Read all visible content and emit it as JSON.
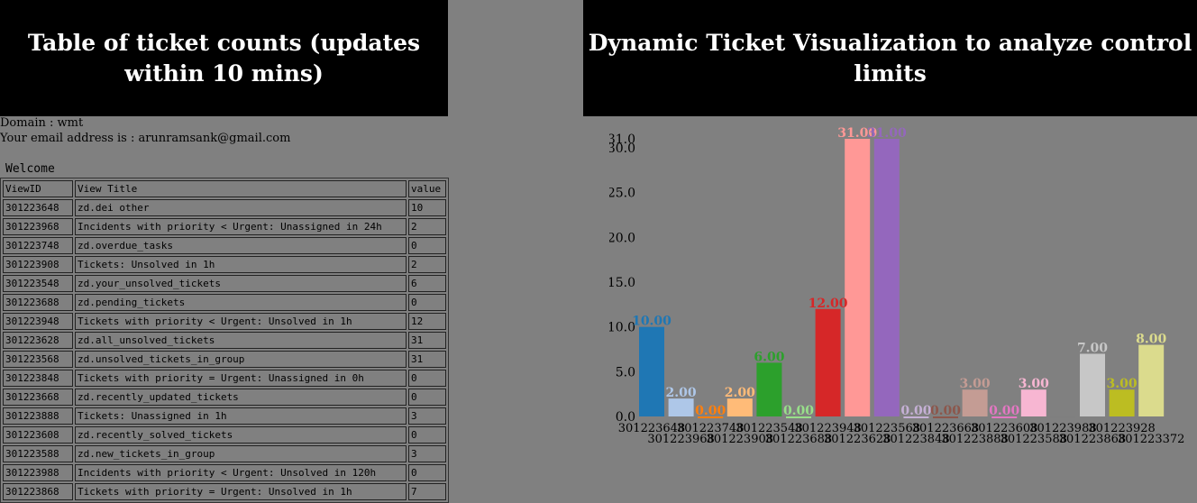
{
  "left_panel": {
    "title": "Table of ticket counts (updates within 10 mins)",
    "domain_line": "Domain : wmt",
    "email_line": "Your email address is : arunramsank@gmail.com",
    "welcome": "Welcome",
    "table": {
      "headers": [
        "ViewID",
        "View Title",
        "value"
      ],
      "rows": [
        [
          "301223648",
          "zd.dei other",
          "10"
        ],
        [
          "301223968",
          "Incidents with priority < Urgent: Unassigned in 24h",
          "2"
        ],
        [
          "301223748",
          "zd.overdue_tasks",
          "0"
        ],
        [
          "301223908",
          "Tickets: Unsolved in 1h",
          "2"
        ],
        [
          "301223548",
          "zd.your_unsolved_tickets",
          "6"
        ],
        [
          "301223688",
          "zd.pending_tickets",
          "0"
        ],
        [
          "301223948",
          "Tickets with priority < Urgent: Unsolved in 1h",
          "12"
        ],
        [
          "301223628",
          "zd.all_unsolved_tickets",
          "31"
        ],
        [
          "301223568",
          "zd.unsolved_tickets_in_group",
          "31"
        ],
        [
          "301223848",
          "Tickets with priority = Urgent: Unassigned in 0h",
          "0"
        ],
        [
          "301223668",
          "zd.recently_updated_tickets",
          "0"
        ],
        [
          "301223888",
          "Tickets: Unassigned in 1h",
          "3"
        ],
        [
          "301223608",
          "zd.recently_solved_tickets",
          "0"
        ],
        [
          "301223588",
          "zd.new_tickets_in_group",
          "3"
        ],
        [
          "301223988",
          "Incidents with priority < Urgent: Unsolved in 120h",
          "0"
        ],
        [
          "301223868",
          "Tickets with priority = Urgent: Unsolved in 1h",
          "7"
        ]
      ]
    }
  },
  "right_panel": {
    "title": "Dynamic Ticket Visualization to analyze control limits"
  },
  "chart_data": {
    "type": "bar",
    "categories": [
      "301223648",
      "301223968",
      "301223748",
      "301223908",
      "301223548",
      "301223688",
      "301223948",
      "301223628",
      "301223568",
      "301223848",
      "301223668",
      "301223888",
      "301223608",
      "301223588",
      "301223988",
      "301223868",
      "301223928",
      "301223372"
    ],
    "values": [
      10,
      2,
      0,
      2,
      6,
      0,
      12,
      31,
      31,
      0,
      0,
      3,
      0,
      3,
      0,
      7,
      3,
      8
    ],
    "value_labels": [
      "10.00",
      "2.00",
      "0.00",
      "2.00",
      "6.00",
      "0.00",
      "12.00",
      "31.00",
      "31.00",
      "0.00",
      "0.00",
      "3.00",
      "0.00",
      "3.00",
      "",
      "7.00",
      "3.00",
      "8.00"
    ],
    "x_tick_labels": [
      "301223648",
      "301223968",
      "301223748",
      "301223908",
      "301223548",
      "301223688",
      "301223948",
      "301223628",
      "301223568",
      "301223848",
      "301223668",
      "301223888",
      "301223608",
      "301223588",
      "301223988",
      "301223868",
      "301223928",
      "301223372"
    ],
    "y_ticks": [
      0,
      5,
      10,
      15,
      20,
      25,
      30,
      31
    ],
    "y_tick_labels": [
      "0.0",
      "5.0",
      "10.0",
      "15.0",
      "20.0",
      "25.0",
      "30.0",
      "31.0"
    ],
    "ylim": [
      0,
      31
    ],
    "colors": [
      "#1f77b4",
      "#aec7e8",
      "#ff7f0e",
      "#ffbb78",
      "#2ca02c",
      "#98df8a",
      "#d62728",
      "#ff9896",
      "#9467bd",
      "#c5b0d5",
      "#8c564b",
      "#c49c94",
      "#e377c2",
      "#f7b6d2",
      "#7f7f7f",
      "#c7c7c7",
      "#bcbd22",
      "#dbdb8d"
    ],
    "title": "",
    "xlabel": "",
    "ylabel": ""
  }
}
